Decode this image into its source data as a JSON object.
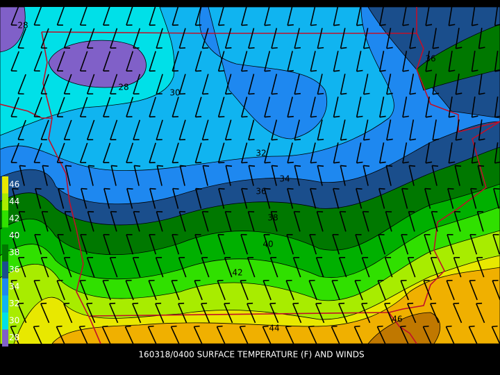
{
  "caption": "160318/0400 SURFACE TEMPERATURE (F) AND WINDS",
  "legend": {
    "levels": [
      46,
      44,
      42,
      40,
      38,
      36,
      34,
      32,
      30,
      28
    ],
    "colors": [
      "#e8e800",
      "#a8ec00",
      "#30e000",
      "#00b000",
      "#007800",
      "#1a4e8c",
      "#1e88f0",
      "#10b4f0",
      "#00e0e8",
      "#8060c8"
    ]
  },
  "contour_labels": [
    "28",
    "28",
    "30",
    "32",
    "34",
    "36",
    "38",
    "40",
    "42",
    "44",
    "46",
    "36"
  ]
}
